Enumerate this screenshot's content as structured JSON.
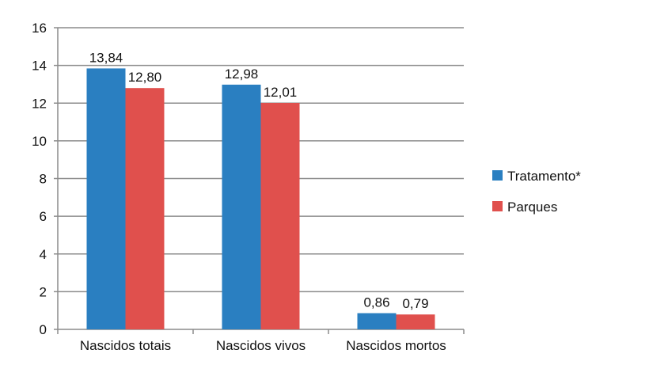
{
  "chart_data": {
    "type": "bar",
    "categories": [
      "Nascidos totais",
      "Nascidos vivos",
      "Nascidos mortos"
    ],
    "series": [
      {
        "name": "Tratamento*",
        "values": [
          13.84,
          12.98,
          0.86
        ],
        "labels": [
          "13,84",
          "12,98",
          "0,86"
        ],
        "color": "#2a7fc1"
      },
      {
        "name": "Parques",
        "values": [
          12.8,
          12.01,
          0.79
        ],
        "labels": [
          "12,80",
          "12,01",
          "0,79"
        ],
        "color": "#e0504d"
      }
    ],
    "yticks": [
      "0",
      "2",
      "4",
      "6",
      "8",
      "10",
      "12",
      "14",
      "16"
    ],
    "ylim": [
      0,
      16
    ],
    "grid": true,
    "legend": "right",
    "title": "",
    "xlabel": "",
    "ylabel": ""
  }
}
